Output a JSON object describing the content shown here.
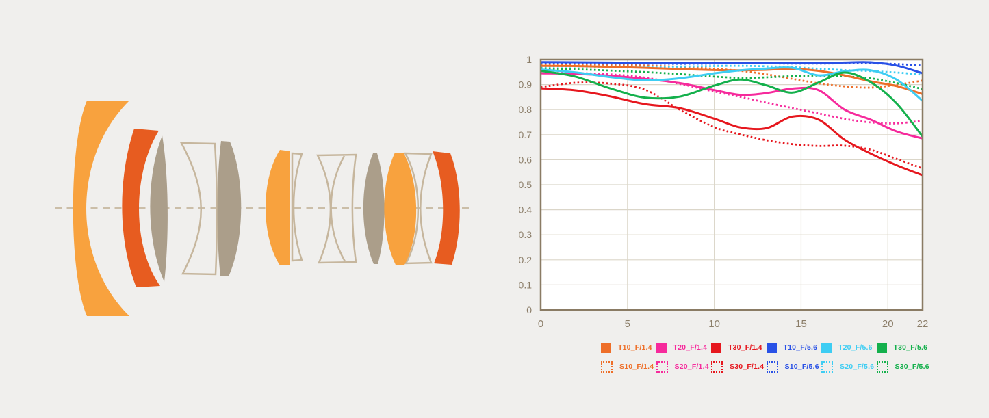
{
  "palette": {
    "background": "#F0EFED",
    "lens_orange": "#F8A23E",
    "lens_vermillion": "#E75C20",
    "lens_taupe": "#AB9E8A",
    "lens_outline": "#C6B69D",
    "axis_dash": "#CBBEA8",
    "chart_bg": "#FFFFFF",
    "chart_border": "#8A7B64",
    "chart_grid": "#DBD6C9",
    "chart_label": "#8B7D68"
  },
  "chart_data": {
    "type": "line",
    "title": "",
    "xlabel": "",
    "ylabel": "",
    "xlim": [
      0,
      22
    ],
    "ylim": [
      0,
      1
    ],
    "grid": true,
    "legend_position": "bottom",
    "x_ticks": [
      0,
      5,
      10,
      15,
      20,
      22
    ],
    "x_tick_labels": [
      "0",
      "5",
      "10",
      "15",
      "20",
      "22"
    ],
    "x_gridlines": [
      5,
      10,
      15,
      20
    ],
    "y_ticks": [
      0,
      0.1,
      0.2,
      0.3,
      0.4,
      0.5,
      0.6,
      0.7,
      0.8,
      0.9,
      1
    ],
    "y_tick_labels": [
      "0",
      "0.1",
      "0.2",
      "0.3",
      "0.4",
      "0.5",
      "0.6",
      "0.7",
      "0.8",
      "0.9",
      "1"
    ],
    "x": [
      0,
      2,
      4,
      6,
      8,
      10,
      11.5,
      13,
      14.5,
      16,
      17.5,
      19,
      20.5,
      22
    ],
    "series": [
      {
        "name": "T10_F/1.4",
        "color": "#EE6E28",
        "style": "solid",
        "values": [
          0.975,
          0.974,
          0.971,
          0.967,
          0.962,
          0.958,
          0.957,
          0.959,
          0.963,
          0.955,
          0.937,
          0.913,
          0.894,
          0.862
        ]
      },
      {
        "name": "T20_F/1.4",
        "color": "#F62A9C",
        "style": "solid",
        "values": [
          0.945,
          0.943,
          0.935,
          0.923,
          0.906,
          0.878,
          0.859,
          0.866,
          0.884,
          0.878,
          0.8,
          0.76,
          0.713,
          0.685
        ]
      },
      {
        "name": "T30_F/1.4",
        "color": "#E6171E",
        "style": "solid",
        "values": [
          0.885,
          0.877,
          0.853,
          0.822,
          0.806,
          0.764,
          0.729,
          0.726,
          0.772,
          0.76,
          0.68,
          0.625,
          0.578,
          0.538
        ]
      },
      {
        "name": "T10_F/5.6",
        "color": "#2951E6",
        "style": "solid",
        "values": [
          0.99,
          0.989,
          0.988,
          0.986,
          0.985,
          0.986,
          0.987,
          0.987,
          0.986,
          0.985,
          0.988,
          0.989,
          0.976,
          0.945
        ]
      },
      {
        "name": "T20_F/5.6",
        "color": "#3ECDF3",
        "style": "solid",
        "values": [
          0.96,
          0.949,
          0.93,
          0.917,
          0.925,
          0.945,
          0.957,
          0.964,
          0.967,
          0.937,
          0.953,
          0.957,
          0.92,
          0.835
        ]
      },
      {
        "name": "T30_F/5.6",
        "color": "#14B04C",
        "style": "solid",
        "values": [
          0.955,
          0.932,
          0.885,
          0.848,
          0.852,
          0.896,
          0.92,
          0.897,
          0.868,
          0.908,
          0.948,
          0.91,
          0.825,
          0.692
        ]
      },
      {
        "name": "S10_F/1.4",
        "color": "#EE6E28",
        "style": "dotted",
        "values": [
          0.982,
          0.981,
          0.979,
          0.976,
          0.971,
          0.963,
          0.955,
          0.941,
          0.923,
          0.905,
          0.893,
          0.888,
          0.899,
          0.916
        ]
      },
      {
        "name": "S20_F/1.4",
        "color": "#F62A9C",
        "style": "dotted",
        "values": [
          0.946,
          0.946,
          0.941,
          0.928,
          0.903,
          0.872,
          0.851,
          0.828,
          0.806,
          0.785,
          0.763,
          0.749,
          0.745,
          0.756
        ]
      },
      {
        "name": "S30_F/1.4",
        "color": "#E6171E",
        "style": "dotted",
        "values": [
          0.89,
          0.907,
          0.904,
          0.88,
          0.8,
          0.73,
          0.701,
          0.678,
          0.662,
          0.655,
          0.656,
          0.64,
          0.603,
          0.565
        ]
      },
      {
        "name": "S10_F/5.6",
        "color": "#2951E6",
        "style": "dotted",
        "values": [
          0.985,
          0.985,
          0.984,
          0.984,
          0.983,
          0.984,
          0.985,
          0.985,
          0.984,
          0.984,
          0.985,
          0.985,
          0.982,
          0.976
        ]
      },
      {
        "name": "S20_F/5.6",
        "color": "#3ECDF3",
        "style": "dotted",
        "values": [
          0.972,
          0.972,
          0.971,
          0.97,
          0.972,
          0.974,
          0.975,
          0.973,
          0.97,
          0.963,
          0.958,
          0.954,
          0.948,
          0.94
        ]
      },
      {
        "name": "S30_F/5.6",
        "color": "#14B04C",
        "style": "dotted",
        "values": [
          0.965,
          0.961,
          0.956,
          0.95,
          0.942,
          0.932,
          0.927,
          0.929,
          0.934,
          0.936,
          0.933,
          0.925,
          0.906,
          0.882
        ]
      }
    ]
  }
}
